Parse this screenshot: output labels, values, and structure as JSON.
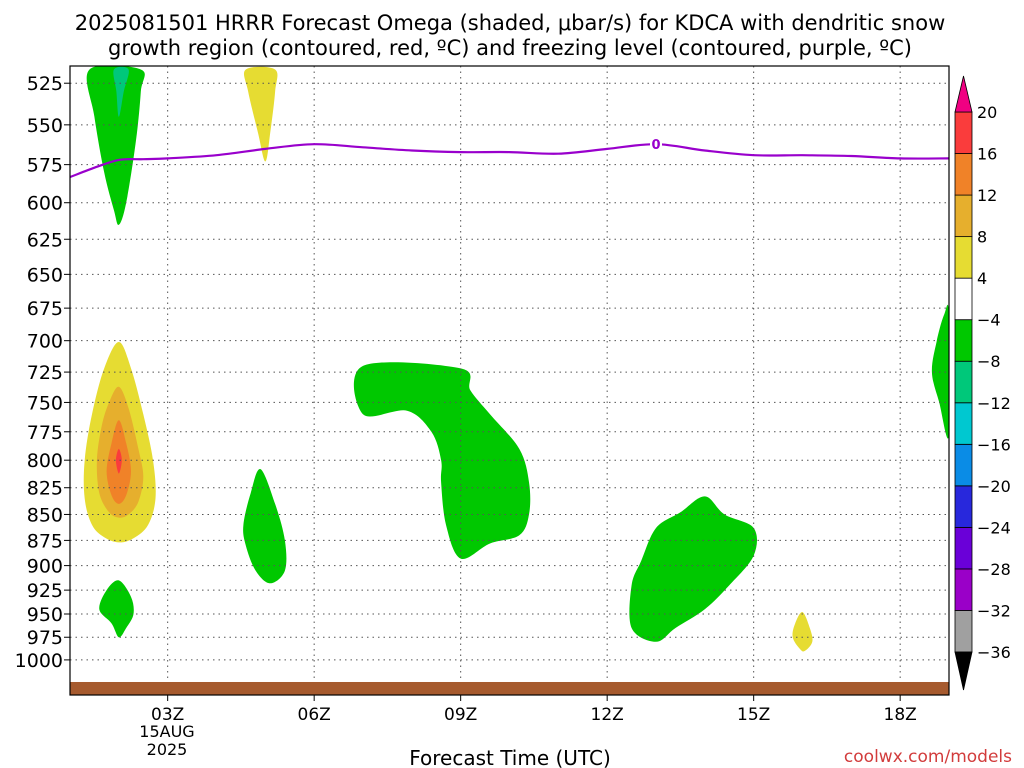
{
  "page": {
    "title_line1": "2025081501 HRRR Forecast Omega (shaded, μbar/s) for KDCA with dendritic snow",
    "title_line2": "growth region (contoured, red, ºC) and freezing level (contoured, purple, ºC)",
    "xlabel": "Forecast Time (UTC)",
    "credit": "coolwx.com/models",
    "date_line1": "15AUG",
    "date_line2": "2025",
    "freezing_label": "0"
  },
  "chart_data": {
    "type": "contour",
    "title": "2025081501 HRRR Forecast Omega (shaded, μbar/s) for KDCA with dendritic snow growth region (contoured, red, ºC) and freezing level (contoured, purple, ºC)",
    "xlabel": "Forecast Time (UTC)",
    "ylabel": "",
    "x_unit": "forecast hour (UTC)",
    "xlim": [
      1,
      19
    ],
    "y_scale": "log (pressure, hPa)",
    "ylim": [
      1040,
      515
    ],
    "x_ticks": [
      {
        "value": 3,
        "label": "03Z"
      },
      {
        "value": 6,
        "label": "06Z"
      },
      {
        "value": 9,
        "label": "09Z"
      },
      {
        "value": 12,
        "label": "12Z"
      },
      {
        "value": 15,
        "label": "15Z"
      },
      {
        "value": 18,
        "label": "18Z"
      }
    ],
    "y_ticks": [
      525,
      550,
      575,
      600,
      625,
      650,
      675,
      700,
      725,
      750,
      775,
      800,
      825,
      850,
      875,
      900,
      925,
      950,
      975,
      1000
    ],
    "grid": true,
    "colorbar": {
      "levels": [
        -36,
        -32,
        -28,
        -24,
        -20,
        -16,
        -12,
        -8,
        -4,
        4,
        8,
        12,
        16,
        20
      ],
      "colors": [
        "#000000",
        "#a0a0a0",
        "#9a00c8",
        "#6a00d8",
        "#2828dc",
        "#0a8ce6",
        "#00c8d0",
        "#00c87a",
        "#00c800",
        "#ffffff",
        "#e6dc32",
        "#e6af2d",
        "#f08228",
        "#fa3c3c",
        "#f00082"
      ],
      "extend": "both"
    },
    "freezing_level": {
      "label": "0",
      "color": "#9900cc",
      "points": [
        [
          1.0,
          583
        ],
        [
          1.5,
          577
        ],
        [
          2.0,
          572
        ],
        [
          2.5,
          571.5
        ],
        [
          3.0,
          571
        ],
        [
          4.0,
          569
        ],
        [
          5.0,
          565
        ],
        [
          6.0,
          562
        ],
        [
          7.0,
          564
        ],
        [
          8.0,
          566
        ],
        [
          9.0,
          567
        ],
        [
          10.0,
          567
        ],
        [
          11.0,
          568
        ],
        [
          12.0,
          565
        ],
        [
          13.0,
          562
        ],
        [
          14.0,
          566
        ],
        [
          15.0,
          569
        ],
        [
          16.0,
          569
        ],
        [
          17.0,
          569.5
        ],
        [
          18.0,
          571
        ],
        [
          19.0,
          571
        ]
      ]
    },
    "omega_regions": [
      {
        "level": "-8 to -4",
        "color": "#00c800",
        "points": [
          [
            1.4,
            517
          ],
          [
            1.5,
            545
          ],
          [
            1.7,
            580
          ],
          [
            1.9,
            605
          ],
          [
            2.0,
            615
          ],
          [
            2.15,
            600
          ],
          [
            2.35,
            560
          ],
          [
            2.45,
            530
          ],
          [
            2.45,
            517
          ]
        ]
      },
      {
        "level": "-12 to -8",
        "color": "#00c87a",
        "points": [
          [
            1.9,
            517
          ],
          [
            1.95,
            530
          ],
          [
            2.0,
            545
          ],
          [
            2.1,
            530
          ],
          [
            2.2,
            517
          ]
        ]
      },
      {
        "level": "4 to 8",
        "color": "#e6dc32",
        "points": [
          [
            4.6,
            517
          ],
          [
            4.65,
            530
          ],
          [
            4.85,
            555
          ],
          [
            5.0,
            573
          ],
          [
            5.1,
            555
          ],
          [
            5.2,
            530
          ],
          [
            5.2,
            517
          ]
        ]
      },
      {
        "level": "4 to 8",
        "color": "#e6dc32",
        "points": [
          [
            2.0,
            701
          ],
          [
            2.25,
            722
          ],
          [
            2.5,
            760
          ],
          [
            2.7,
            800
          ],
          [
            2.75,
            835
          ],
          [
            2.6,
            860
          ],
          [
            2.3,
            873
          ],
          [
            2.0,
            877
          ],
          [
            1.7,
            872
          ],
          [
            1.45,
            860
          ],
          [
            1.3,
            835
          ],
          [
            1.3,
            800
          ],
          [
            1.45,
            760
          ],
          [
            1.7,
            722
          ]
        ]
      },
      {
        "level": "8 to 12",
        "color": "#e6af2d",
        "points": [
          [
            2.0,
            737
          ],
          [
            2.2,
            755
          ],
          [
            2.4,
            790
          ],
          [
            2.5,
            815
          ],
          [
            2.4,
            838
          ],
          [
            2.2,
            850
          ],
          [
            2.0,
            853
          ],
          [
            1.8,
            848
          ],
          [
            1.6,
            830
          ],
          [
            1.55,
            800
          ],
          [
            1.65,
            770
          ],
          [
            1.8,
            750
          ]
        ]
      },
      {
        "level": "12 to 16",
        "color": "#f08228",
        "points": [
          [
            2.0,
            765
          ],
          [
            2.15,
            785
          ],
          [
            2.25,
            810
          ],
          [
            2.15,
            832
          ],
          [
            2.0,
            840
          ],
          [
            1.85,
            832
          ],
          [
            1.75,
            810
          ],
          [
            1.85,
            785
          ]
        ]
      },
      {
        "level": "16 to 20",
        "color": "#fa3c3c",
        "points": [
          [
            2.0,
            790
          ],
          [
            2.06,
            800
          ],
          [
            2.0,
            812
          ],
          [
            1.94,
            800
          ]
        ]
      },
      {
        "level": "-8 to -4",
        "color": "#00c800",
        "points": [
          [
            4.9,
            808
          ],
          [
            5.2,
            840
          ],
          [
            5.4,
            875
          ],
          [
            5.4,
            905
          ],
          [
            5.1,
            918
          ],
          [
            4.8,
            905
          ],
          [
            4.6,
            880
          ],
          [
            4.55,
            860
          ],
          [
            4.7,
            830
          ]
        ]
      },
      {
        "level": "-8 to -4",
        "color": "#00c800",
        "points": [
          [
            2.0,
            915
          ],
          [
            2.25,
            932
          ],
          [
            2.3,
            950
          ],
          [
            2.15,
            965
          ],
          [
            2.0,
            975
          ],
          [
            1.85,
            960
          ],
          [
            1.6,
            945
          ],
          [
            1.75,
            925
          ]
        ]
      },
      {
        "level": "-8 to -4",
        "color": "#00c800",
        "points": [
          [
            7.0,
            720
          ],
          [
            9.0,
            722
          ],
          [
            9.2,
            740
          ],
          [
            9.6,
            760
          ],
          [
            10.2,
            790
          ],
          [
            10.4,
            820
          ],
          [
            10.4,
            850
          ],
          [
            10.2,
            870
          ],
          [
            9.6,
            878
          ],
          [
            9.0,
            893
          ],
          [
            8.7,
            860
          ],
          [
            8.6,
            820
          ],
          [
            8.6,
            800
          ],
          [
            8.4,
            775
          ],
          [
            7.9,
            757
          ],
          [
            7.0,
            760
          ]
        ]
      },
      {
        "level": "-8 to -4",
        "color": "#00c800",
        "points": [
          [
            13.0,
            863
          ],
          [
            13.5,
            848
          ],
          [
            14.0,
            833
          ],
          [
            14.4,
            850
          ],
          [
            15.0,
            863
          ],
          [
            15.0,
            890
          ],
          [
            14.5,
            920
          ],
          [
            14.0,
            945
          ],
          [
            13.4,
            965
          ],
          [
            13.0,
            980
          ],
          [
            12.5,
            965
          ],
          [
            12.5,
            920
          ],
          [
            12.7,
            895
          ]
        ]
      },
      {
        "level": "-8 to -4",
        "color": "#00c800",
        "points": [
          [
            18.9,
            680
          ],
          [
            19.0,
            680
          ],
          [
            19.0,
            778
          ],
          [
            18.8,
            750
          ],
          [
            18.65,
            725
          ],
          [
            18.75,
            700
          ]
        ]
      },
      {
        "level": "4 to 8",
        "color": "#e6dc32",
        "points": [
          [
            16.0,
            948
          ],
          [
            16.15,
            965
          ],
          [
            16.2,
            980
          ],
          [
            16.05,
            990
          ],
          [
            15.95,
            988
          ],
          [
            15.8,
            975
          ],
          [
            15.85,
            960
          ]
        ]
      }
    ],
    "terrain": {
      "color": "#a65a2e",
      "pressure_top": 1025
    }
  }
}
